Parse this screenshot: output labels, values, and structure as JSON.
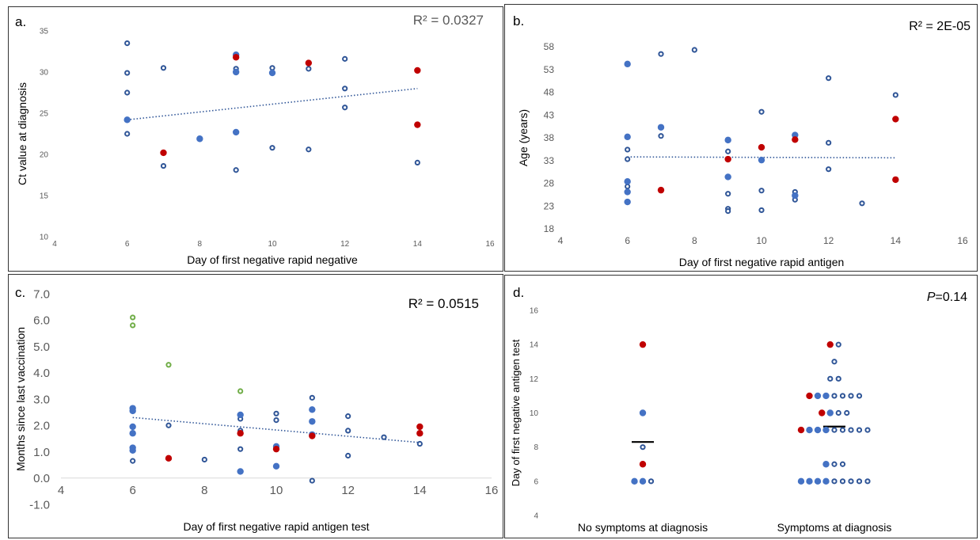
{
  "chart_data": [
    {
      "panel_label": "a.",
      "type": "scatter",
      "xlabel": "Day of first negative rapid negative",
      "ylabel": "Ct value at diagnosis",
      "annotation": "R² = 0.0327",
      "xlim": [
        4,
        16
      ],
      "xticks": [
        "4",
        "6",
        "8",
        "10",
        "12",
        "14",
        "16"
      ],
      "ylim": [
        10,
        35
      ],
      "yticks": [
        "10",
        "15",
        "20",
        "25",
        "30",
        "35"
      ],
      "trendline": [
        [
          6,
          24.2
        ],
        [
          14,
          28.0
        ]
      ],
      "colors": {
        "blue": "#4472c4",
        "navy": "#2f5597",
        "red": "#c00000"
      },
      "series": [
        {
          "style": "open",
          "color": "navy",
          "points": [
            [
              6,
              33.5
            ],
            [
              6,
              29.9
            ],
            [
              6,
              27.5
            ],
            [
              6,
              24.2
            ],
            [
              6,
              22.5
            ],
            [
              7,
              30.5
            ],
            [
              7,
              18.6
            ],
            [
              9,
              30.4
            ],
            [
              9,
              18.1
            ],
            [
              10,
              30.5
            ],
            [
              10,
              20.8
            ],
            [
              11,
              30.4
            ],
            [
              11,
              20.6
            ],
            [
              12,
              31.6
            ],
            [
              12,
              28.0
            ],
            [
              12,
              25.7
            ],
            [
              14,
              19.0
            ]
          ]
        },
        {
          "style": "filled",
          "color": "blue",
          "points": [
            [
              6,
              24.2
            ],
            [
              8,
              21.9
            ],
            [
              9,
              32.1
            ],
            [
              9,
              30.0
            ],
            [
              9,
              22.7
            ],
            [
              10,
              29.9
            ]
          ]
        },
        {
          "style": "filled",
          "color": "red",
          "points": [
            [
              7,
              20.2
            ],
            [
              9,
              31.8
            ],
            [
              11,
              31.1
            ],
            [
              14,
              30.2
            ],
            [
              14,
              23.6
            ]
          ]
        }
      ]
    },
    {
      "panel_label": "b.",
      "type": "scatter",
      "xlabel": "Day of first negative rapid antigen",
      "ylabel": "Age (years)",
      "annotation": "R² = 2E-05",
      "xlim": [
        4,
        16
      ],
      "xticks": [
        "4",
        "6",
        "8",
        "10",
        "12",
        "14",
        "16"
      ],
      "ylim": [
        18,
        58
      ],
      "yticks": [
        "18",
        "23",
        "28",
        "33",
        "38",
        "43",
        "48",
        "53",
        "58"
      ],
      "trendline": [
        [
          6,
          33.8
        ],
        [
          14,
          33.6
        ]
      ],
      "colors": {
        "blue": "#4472c4",
        "navy": "#2f5597",
        "red": "#c00000"
      },
      "series": [
        {
          "style": "open",
          "color": "navy",
          "points": [
            [
              6,
              35.4
            ],
            [
              6,
              33.3
            ],
            [
              6,
              27.3
            ],
            [
              7,
              56.4
            ],
            [
              7,
              38.4
            ],
            [
              8,
              57.3
            ],
            [
              9,
              35.0
            ],
            [
              9,
              25.7
            ],
            [
              9,
              22.4
            ],
            [
              9,
              21.9
            ],
            [
              10,
              43.7
            ],
            [
              10,
              26.4
            ],
            [
              10,
              22.1
            ],
            [
              11,
              26.1
            ],
            [
              11,
              24.4
            ],
            [
              12,
              51.1
            ],
            [
              12,
              36.9
            ],
            [
              12,
              31.1
            ],
            [
              13,
              23.6
            ],
            [
              14,
              47.4
            ]
          ]
        },
        {
          "style": "filled",
          "color": "blue",
          "points": [
            [
              6,
              54.2
            ],
            [
              6,
              38.2
            ],
            [
              6,
              28.4
            ],
            [
              6,
              26.1
            ],
            [
              6,
              23.9
            ],
            [
              7,
              40.3
            ],
            [
              9,
              37.5
            ],
            [
              9,
              29.4
            ],
            [
              10,
              33.1
            ],
            [
              11,
              38.6
            ],
            [
              11,
              25.3
            ]
          ]
        },
        {
          "style": "filled",
          "color": "red",
          "points": [
            [
              7,
              26.5
            ],
            [
              9,
              33.3
            ],
            [
              10,
              35.9
            ],
            [
              11,
              37.6
            ],
            [
              14,
              42.1
            ],
            [
              14,
              28.8
            ]
          ]
        }
      ]
    },
    {
      "panel_label": "c.",
      "type": "scatter",
      "xlabel": "Day of first negative rapid antigen test",
      "ylabel": "Months since last vaccination",
      "annotation": "R² = 0.0515",
      "xlim": [
        4,
        16
      ],
      "xticks": [
        "4",
        "6",
        "8",
        "10",
        "12",
        "14",
        "16"
      ],
      "ylim": [
        -1,
        7
      ],
      "yticks": [
        "-1.0",
        "0.0",
        "1.0",
        "2.0",
        "3.0",
        "4.0",
        "5.0",
        "6.0",
        "7.0"
      ],
      "trendline": [
        [
          6,
          2.3
        ],
        [
          14,
          1.35
        ]
      ],
      "colors": {
        "blue": "#4472c4",
        "navy": "#2f5597",
        "red": "#c00000",
        "green": "#70ad47"
      },
      "series": [
        {
          "style": "open",
          "color": "green",
          "points": [
            [
              6,
              6.1
            ],
            [
              6,
              5.8
            ],
            [
              7,
              4.3
            ],
            [
              9,
              3.3
            ]
          ]
        },
        {
          "style": "open",
          "color": "navy",
          "points": [
            [
              6,
              0.65
            ],
            [
              7,
              2.0
            ],
            [
              8,
              0.7
            ],
            [
              9,
              2.25
            ],
            [
              9,
              1.8
            ],
            [
              9,
              1.1
            ],
            [
              10,
              2.45
            ],
            [
              10,
              2.2
            ],
            [
              11,
              3.05
            ],
            [
              11,
              -0.1
            ],
            [
              12,
              2.35
            ],
            [
              12,
              1.8
            ],
            [
              12,
              0.85
            ],
            [
              13,
              1.55
            ],
            [
              14,
              1.3
            ]
          ]
        },
        {
          "style": "filled",
          "color": "blue",
          "points": [
            [
              6,
              2.65
            ],
            [
              6,
              2.55
            ],
            [
              6,
              1.95
            ],
            [
              6,
              1.7
            ],
            [
              6,
              1.15
            ],
            [
              6,
              1.05
            ],
            [
              9,
              2.4
            ],
            [
              9,
              0.25
            ],
            [
              10,
              1.2
            ],
            [
              10,
              0.45
            ],
            [
              11,
              2.6
            ],
            [
              11,
              2.15
            ],
            [
              11,
              1.65
            ]
          ]
        },
        {
          "style": "filled",
          "color": "red",
          "points": [
            [
              7,
              0.75
            ],
            [
              9,
              1.7
            ],
            [
              10,
              1.1
            ],
            [
              11,
              1.6
            ],
            [
              14,
              1.95
            ],
            [
              14,
              1.7
            ]
          ]
        }
      ]
    },
    {
      "panel_label": "d.",
      "type": "scatter",
      "ylabel": "Day of first negative antigen test",
      "annotation_italic": "P",
      "annotation_rest": "=0.14",
      "categories": [
        "No symptoms at diagnosis",
        "Symptoms at diagnosis"
      ],
      "ylim": [
        4,
        16
      ],
      "yticks": [
        "4",
        "6",
        "8",
        "10",
        "12",
        "14",
        "16"
      ],
      "medians": [
        8.3,
        9.2
      ],
      "colors": {
        "blue": "#4472c4",
        "navy": "#2f5597",
        "red": "#c00000",
        "black": "#000000"
      },
      "groups": [
        {
          "points": [
            {
              "y": 14,
              "o": 0,
              "s": "filled",
              "c": "red"
            },
            {
              "y": 10,
              "o": 0,
              "s": "filled",
              "c": "blue"
            },
            {
              "y": 8,
              "o": 0,
              "s": "open",
              "c": "navy"
            },
            {
              "y": 7,
              "o": 0,
              "s": "filled",
              "c": "red"
            },
            {
              "y": 6,
              "o": -1,
              "s": "filled",
              "c": "blue"
            },
            {
              "y": 6,
              "o": 0,
              "s": "filled",
              "c": "blue"
            },
            {
              "y": 6,
              "o": 1,
              "s": "open",
              "c": "navy"
            }
          ]
        },
        {
          "points": [
            {
              "y": 14,
              "o": -0.5,
              "s": "filled",
              "c": "red"
            },
            {
              "y": 14,
              "o": 0.5,
              "s": "open",
              "c": "navy"
            },
            {
              "y": 13,
              "o": 0,
              "s": "open",
              "c": "navy"
            },
            {
              "y": 12,
              "o": -0.5,
              "s": "open",
              "c": "navy"
            },
            {
              "y": 12,
              "o": 0.5,
              "s": "open",
              "c": "navy"
            },
            {
              "y": 11,
              "o": -3,
              "s": "filled",
              "c": "red"
            },
            {
              "y": 11,
              "o": -2,
              "s": "filled",
              "c": "blue"
            },
            {
              "y": 11,
              "o": -1,
              "s": "filled",
              "c": "blue"
            },
            {
              "y": 11,
              "o": 0,
              "s": "open",
              "c": "navy"
            },
            {
              "y": 11,
              "o": 1,
              "s": "open",
              "c": "navy"
            },
            {
              "y": 11,
              "o": 2,
              "s": "open",
              "c": "navy"
            },
            {
              "y": 11,
              "o": 3,
              "s": "open",
              "c": "navy"
            },
            {
              "y": 10,
              "o": -1.5,
              "s": "filled",
              "c": "red"
            },
            {
              "y": 10,
              "o": -0.5,
              "s": "filled",
              "c": "blue"
            },
            {
              "y": 10,
              "o": 0.5,
              "s": "open",
              "c": "navy"
            },
            {
              "y": 10,
              "o": 1.5,
              "s": "open",
              "c": "navy"
            },
            {
              "y": 9,
              "o": -4,
              "s": "filled",
              "c": "red"
            },
            {
              "y": 9,
              "o": -3,
              "s": "filled",
              "c": "blue"
            },
            {
              "y": 9,
              "o": -2,
              "s": "filled",
              "c": "blue"
            },
            {
              "y": 9,
              "o": -1,
              "s": "filled",
              "c": "blue"
            },
            {
              "y": 9,
              "o": 0,
              "s": "open",
              "c": "navy"
            },
            {
              "y": 9,
              "o": 1,
              "s": "open",
              "c": "navy"
            },
            {
              "y": 9,
              "o": 2,
              "s": "open",
              "c": "navy"
            },
            {
              "y": 9,
              "o": 3,
              "s": "open",
              "c": "navy"
            },
            {
              "y": 9,
              "o": 4,
              "s": "open",
              "c": "navy"
            },
            {
              "y": 7,
              "o": -1,
              "s": "filled",
              "c": "blue"
            },
            {
              "y": 7,
              "o": 0,
              "s": "open",
              "c": "navy"
            },
            {
              "y": 7,
              "o": 1,
              "s": "open",
              "c": "navy"
            },
            {
              "y": 6,
              "o": -4,
              "s": "filled",
              "c": "blue"
            },
            {
              "y": 6,
              "o": -3,
              "s": "filled",
              "c": "blue"
            },
            {
              "y": 6,
              "o": -2,
              "s": "filled",
              "c": "blue"
            },
            {
              "y": 6,
              "o": -1,
              "s": "filled",
              "c": "blue"
            },
            {
              "y": 6,
              "o": 0,
              "s": "open",
              "c": "navy"
            },
            {
              "y": 6,
              "o": 1,
              "s": "open",
              "c": "navy"
            },
            {
              "y": 6,
              "o": 2,
              "s": "open",
              "c": "navy"
            },
            {
              "y": 6,
              "o": 3,
              "s": "open",
              "c": "navy"
            },
            {
              "y": 6,
              "o": 4,
              "s": "open",
              "c": "navy"
            }
          ]
        }
      ]
    }
  ]
}
